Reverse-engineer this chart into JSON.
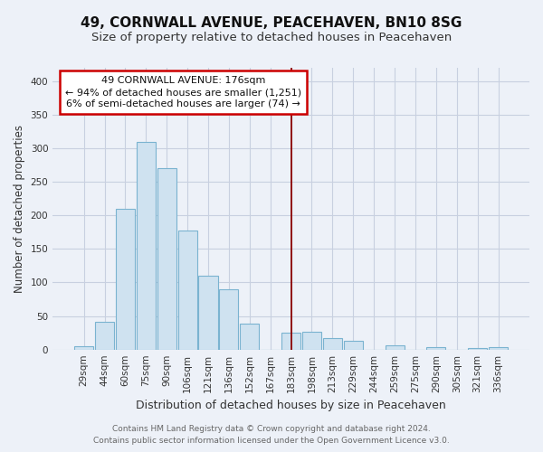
{
  "title": "49, CORNWALL AVENUE, PEACEHAVEN, BN10 8SG",
  "subtitle": "Size of property relative to detached houses in Peacehaven",
  "xlabel": "Distribution of detached houses by size in Peacehaven",
  "ylabel": "Number of detached properties",
  "bar_labels": [
    "29sqm",
    "44sqm",
    "60sqm",
    "75sqm",
    "90sqm",
    "106sqm",
    "121sqm",
    "136sqm",
    "152sqm",
    "167sqm",
    "183sqm",
    "198sqm",
    "213sqm",
    "229sqm",
    "244sqm",
    "259sqm",
    "275sqm",
    "290sqm",
    "305sqm",
    "321sqm",
    "336sqm"
  ],
  "bar_values": [
    5,
    42,
    210,
    310,
    270,
    178,
    110,
    90,
    38,
    0,
    25,
    26,
    17,
    13,
    0,
    6,
    0,
    4,
    0,
    2,
    3
  ],
  "bar_color": "#cfe2f0",
  "bar_edge_color": "#7ab3d0",
  "highlight_x_label": "183sqm",
  "annotation_title": "49 CORNWALL AVENUE: 176sqm",
  "annotation_line1": "← 94% of detached houses are smaller (1,251)",
  "annotation_line2": "6% of semi-detached houses are larger (74) →",
  "annotation_box_facecolor": "#ffffff",
  "annotation_box_edgecolor": "#cc0000",
  "vline_color": "#8b0000",
  "ylim": [
    0,
    420
  ],
  "yticks": [
    0,
    50,
    100,
    150,
    200,
    250,
    300,
    350,
    400
  ],
  "footer_line1": "Contains HM Land Registry data © Crown copyright and database right 2024.",
  "footer_line2": "Contains public sector information licensed under the Open Government Licence v3.0.",
  "bg_color": "#edf1f8",
  "grid_color": "#c8d0e0",
  "title_fontsize": 11,
  "subtitle_fontsize": 9.5,
  "xlabel_fontsize": 9,
  "ylabel_fontsize": 8.5,
  "tick_fontsize": 7.5,
  "annotation_fontsize": 8,
  "footer_fontsize": 6.5
}
